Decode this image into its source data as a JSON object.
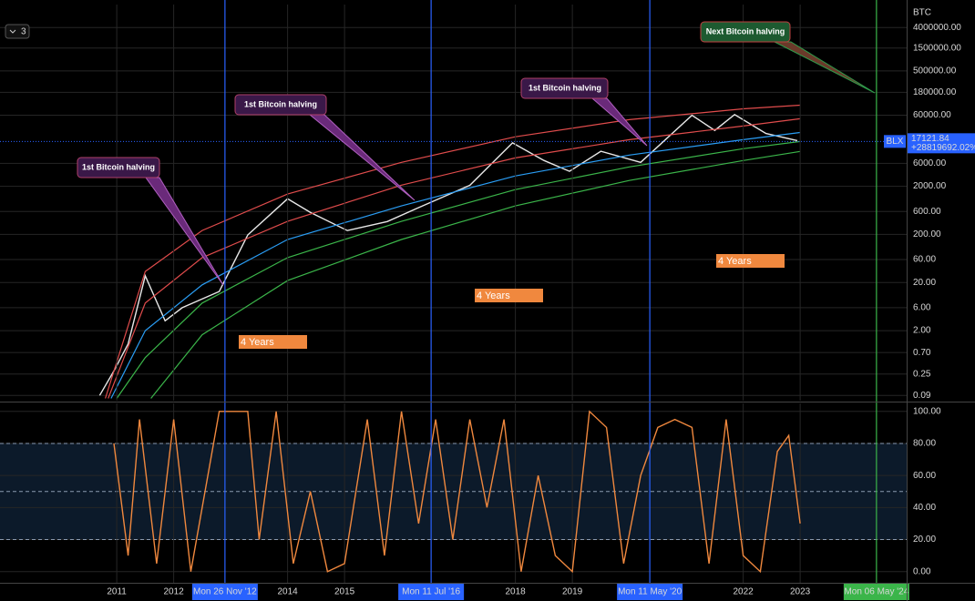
{
  "chart_data": [
    {
      "type": "line",
      "y_label": "BTC",
      "log_scale": true,
      "grid": true,
      "xlim": [
        2008.95,
        2024.87
      ],
      "ylim": [
        0.07,
        12000000
      ],
      "yticks": [
        {
          "value": 4000000,
          "label": "4000000.00"
        },
        {
          "value": 1500000,
          "label": "1500000.00"
        },
        {
          "value": 500000,
          "label": "500000.00"
        },
        {
          "value": 180000,
          "label": "180000.00"
        },
        {
          "value": 60000,
          "label": "60000.00"
        },
        {
          "value": 6000,
          "label": "6000.00"
        },
        {
          "value": 2000,
          "label": "2000.00"
        },
        {
          "value": 600,
          "label": "600.00"
        },
        {
          "value": 200,
          "label": "200.00"
        },
        {
          "value": 60,
          "label": "60.00"
        },
        {
          "value": 20,
          "label": "20.00"
        },
        {
          "value": 6,
          "label": "6.00"
        },
        {
          "value": 2,
          "label": "2.00"
        },
        {
          "value": 0.7,
          "label": "0.70"
        },
        {
          "value": 0.25,
          "label": "0.25"
        },
        {
          "value": 0.09,
          "label": "0.09"
        }
      ],
      "last_price": {
        "symbol": "BLX",
        "value": 17121.84,
        "label": "17121.84",
        "change": "+28819692.02%"
      },
      "series": [
        {
          "color": "#e8e8e8",
          "x": [
            2010.7,
            2010.95,
            2011.2,
            2011.5,
            2011.85,
            2012.15,
            2012.8,
            2013.3,
            2014.0,
            2014.4,
            2015.05,
            2015.75,
            2016.3,
            2017.2,
            2017.95,
            2018.5,
            2018.95,
            2019.5,
            2020.2,
            2021.1,
            2021.5,
            2021.85,
            2022.4,
            2022.95
          ],
          "values": [
            0.09,
            0.29,
            1.06,
            27.5,
            3.2,
            6,
            13,
            195,
            1100,
            575,
            240,
            370,
            720,
            2100,
            16000,
            6900,
            4100,
            10700,
            6300,
            60000,
            29000,
            62000,
            25000,
            17800
          ]
        },
        {
          "color": "#e04c4c",
          "x": [
            2010.8,
            2011.5,
            2012.5,
            2014,
            2016,
            2018,
            2020,
            2022,
            2023
          ],
          "values": [
            0.078,
            34,
            242,
            1380,
            6300,
            21400,
            48500,
            81700,
            97300
          ]
        },
        {
          "color": "#e04c4c",
          "x": [
            2010.85,
            2011.5,
            2012.5,
            2014,
            2016,
            2018,
            2020,
            2022,
            2023
          ],
          "values": [
            0.078,
            7.5,
            66,
            373,
            2120,
            7800,
            18600,
            35800,
            50700
          ]
        },
        {
          "color": "#2a9df4",
          "x": [
            2010.9,
            2011.5,
            2012.5,
            2014,
            2016,
            2018,
            2020,
            2022,
            2023
          ],
          "values": [
            0.078,
            2.0,
            17.9,
            157,
            782,
            3280,
            8900,
            18600,
            26300
          ]
        },
        {
          "color": "#3bb54a",
          "x": [
            2011.0,
            2011.5,
            2012.5,
            2014,
            2016,
            2018,
            2020,
            2022,
            2023
          ],
          "values": [
            0.078,
            0.55,
            7.5,
            66,
            373,
            1710,
            5070,
            12100,
            17100
          ]
        },
        {
          "color": "#3bb54a",
          "x": [
            2011.6,
            2012.5,
            2014,
            2016,
            2018,
            2020,
            2022,
            2023
          ],
          "values": [
            0.078,
            1.64,
            22,
            157,
            782,
            2640,
            6870,
            10600
          ]
        }
      ],
      "annotations": [
        "1st Bitcoin halving",
        "1st Bitcoin halving",
        "1st Bitcoin halving",
        "Next Bitcoin halving",
        "4 Years",
        "4 Years",
        "4 Years"
      ],
      "legend_toggle": 3
    },
    {
      "type": "line",
      "grid": true,
      "xlim": [
        2008.95,
        2024.87
      ],
      "ylim": [
        -7,
        105
      ],
      "xticks": [
        2011,
        2012,
        2014,
        2015,
        2018,
        2019,
        2022,
        2023
      ],
      "yticks": [
        {
          "value": 100,
          "label": "100.00"
        },
        {
          "value": 80,
          "label": "80.00"
        },
        {
          "value": 60,
          "label": "60.00"
        },
        {
          "value": 40,
          "label": "40.00"
        },
        {
          "value": 20,
          "label": "20.00"
        },
        {
          "value": 0,
          "label": "0.00"
        }
      ],
      "band": [
        20,
        80
      ],
      "dashed": [
        80,
        50,
        20
      ],
      "markers": [
        {
          "label": "Mon 26 Nov '12",
          "x": 2012.9,
          "color": "#2962ff"
        },
        {
          "label": "Mon 11 Jul '16",
          "x": 2016.52,
          "color": "#2962ff"
        },
        {
          "label": "Mon 11 May '20",
          "x": 2020.36,
          "color": "#2962ff"
        },
        {
          "label": "Mon 06 May '24",
          "x": 2024.34,
          "color": "#3bb54a"
        }
      ],
      "series": [
        {
          "color": "#f0883e",
          "x": [
            2010.95,
            2011.2,
            2011.4,
            2011.7,
            2012.0,
            2012.3,
            2012.5,
            2012.8,
            2013.3,
            2013.5,
            2013.8,
            2014.1,
            2014.4,
            2014.7,
            2015.0,
            2015.4,
            2015.7,
            2016.0,
            2016.3,
            2016.6,
            2016.9,
            2017.2,
            2017.5,
            2017.8,
            2018.1,
            2018.4,
            2018.7,
            2019.0,
            2019.3,
            2019.6,
            2019.9,
            2020.2,
            2020.5,
            2020.8,
            2021.1,
            2021.4,
            2021.7,
            2022.0,
            2022.3,
            2022.6,
            2022.8,
            2023.0
          ],
          "values": [
            80,
            10,
            95,
            5,
            95,
            0,
            40,
            100,
            100,
            20,
            100,
            5,
            50,
            0,
            5,
            95,
            10,
            100,
            30,
            95,
            20,
            95,
            40,
            95,
            0,
            60,
            10,
            0,
            100,
            90,
            5,
            60,
            90,
            95,
            90,
            5,
            95,
            10,
            0,
            75,
            85,
            30
          ]
        }
      ]
    }
  ]
}
